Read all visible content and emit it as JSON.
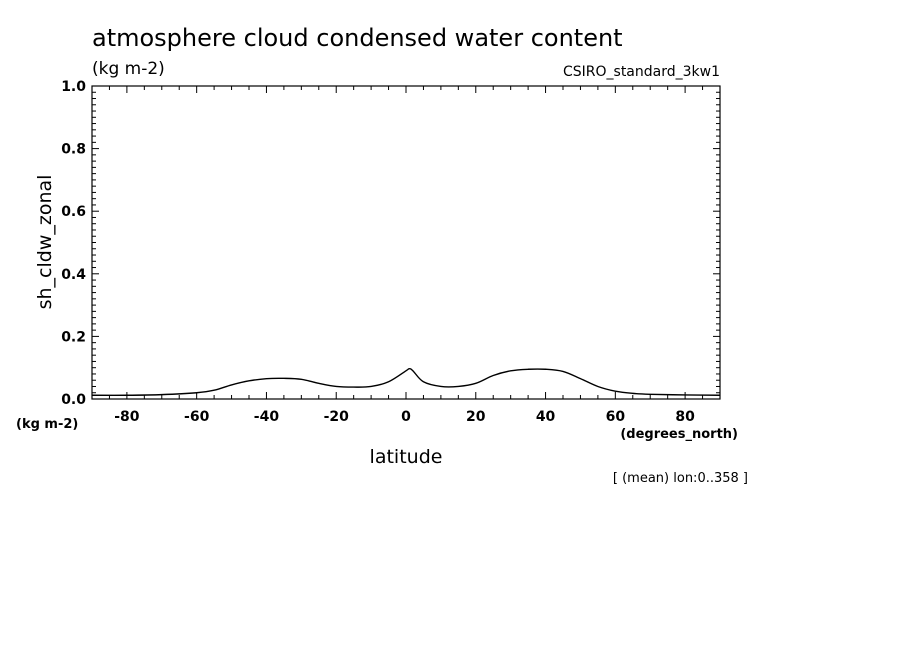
{
  "chart_data": {
    "type": "line",
    "title": "atmosphere cloud condensed water content",
    "units": "(kg m-2)",
    "model": "CSIRO_standard_3kw1",
    "xlabel": "latitude",
    "xunits": "(degrees_north)",
    "ylabel": "sh_cldw_zonal",
    "yunits": "(kg m-2)",
    "note": "[ (mean) lon:0..358 ]",
    "xlim": [
      -90,
      90
    ],
    "ylim": [
      0.0,
      1.0
    ],
    "x_ticks": [
      -80,
      -60,
      -40,
      -20,
      0,
      20,
      40,
      60,
      80
    ],
    "x_tick_labels": [
      "-80",
      "-60",
      "-40",
      "-20",
      "0",
      "20",
      "40",
      "60",
      "80"
    ],
    "y_ticks": [
      0.0,
      0.2,
      0.4,
      0.6,
      0.8,
      1.0
    ],
    "y_tick_labels": [
      "0.0",
      "0.2",
      "0.4",
      "0.6",
      "0.8",
      "1.0"
    ],
    "series": [
      {
        "name": "sh_cldw_zonal",
        "x": [
          -90,
          -80,
          -70,
          -60,
          -55,
          -50,
          -45,
          -40,
          -35,
          -30,
          -25,
          -20,
          -15,
          -10,
          -5,
          0,
          1,
          2,
          5,
          10,
          15,
          20,
          25,
          30,
          35,
          40,
          45,
          50,
          55,
          60,
          65,
          70,
          80,
          90
        ],
        "y": [
          0.012,
          0.012,
          0.014,
          0.02,
          0.028,
          0.045,
          0.058,
          0.065,
          0.066,
          0.063,
          0.05,
          0.04,
          0.038,
          0.04,
          0.055,
          0.09,
          0.097,
          0.09,
          0.055,
          0.04,
          0.04,
          0.05,
          0.075,
          0.09,
          0.095,
          0.095,
          0.088,
          0.065,
          0.04,
          0.025,
          0.018,
          0.015,
          0.013,
          0.012
        ]
      }
    ]
  }
}
